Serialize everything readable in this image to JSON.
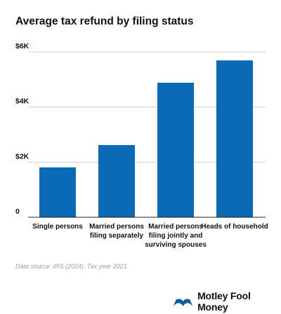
{
  "title": "Average tax refund by filing status",
  "source": "Data source: IRS (2024). Tax year 2021.",
  "brand": {
    "name": "Motley Fool Money",
    "icon": "jester-cap-logo-icon",
    "color": "#0a5ea8"
  },
  "chart_data": {
    "type": "bar",
    "title": "Average tax refund by filing status",
    "categories": [
      [
        "Single persons"
      ],
      [
        "Married persons",
        "filing separately"
      ],
      [
        "Married persons",
        "filing jointly and",
        "surviving spouses"
      ],
      [
        "Heads of household"
      ]
    ],
    "values": [
      1810,
      2620,
      4880,
      5690
    ],
    "yticks": [
      {
        "value": 0,
        "label": "0"
      },
      {
        "value": 2000,
        "label": "$2K"
      },
      {
        "value": 4000,
        "label": "$4K"
      },
      {
        "value": 6000,
        "label": "$6K"
      }
    ],
    "ylim": [
      0,
      6000
    ],
    "grid": true,
    "color": "#0a6ab6"
  }
}
